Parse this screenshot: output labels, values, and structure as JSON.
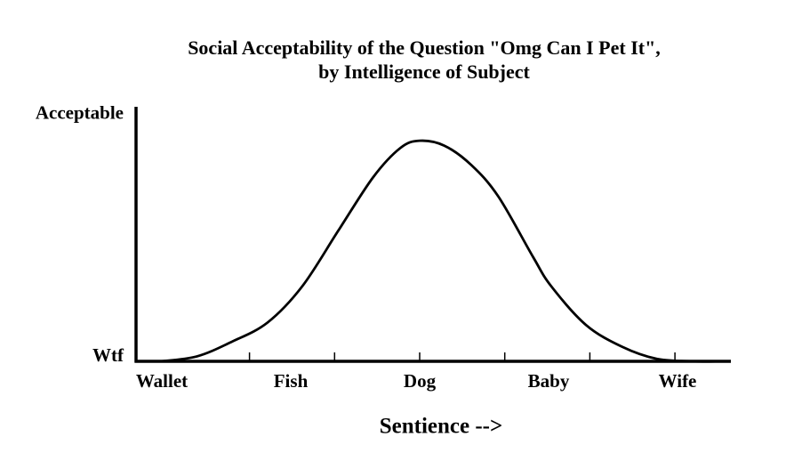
{
  "chart_data": {
    "type": "line",
    "title": [
      "Social Acceptability of the Question \"Omg Can I Pet It\",",
      "by Intelligence of Subject"
    ],
    "xlabel": "Sentience -->",
    "xlim": [
      -0.2,
      4.4
    ],
    "ylim": [
      0,
      1.05
    ],
    "xticks": [
      {
        "value": 0,
        "label": "Wallet"
      },
      {
        "value": 1,
        "label": "Fish"
      },
      {
        "value": 2,
        "label": "Dog"
      },
      {
        "value": 3,
        "label": "Baby"
      },
      {
        "value": 4,
        "label": "Wife"
      }
    ],
    "x_tick_marks": [
      0.68,
      1.34,
      2,
      2.66,
      3.32,
      3.98
    ],
    "yticks": [
      {
        "value": 1,
        "label": "Acceptable"
      },
      {
        "value": 0,
        "label": "Wtf"
      }
    ],
    "series": [
      {
        "color": "#000000",
        "x": [
          -0.01,
          0.27,
          0.54,
          0.82,
          1.09,
          1.37,
          1.64,
          1.85,
          2,
          2.19,
          2.4,
          2.61,
          2.88,
          3.02,
          3.29,
          3.57,
          3.84,
          4.12,
          4.33
        ],
        "values": [
          0,
          0.02,
          0.08,
          0.16,
          0.31,
          0.54,
          0.76,
          0.88,
          0.91,
          0.89,
          0.81,
          0.68,
          0.43,
          0.31,
          0.15,
          0.06,
          0.01,
          0,
          0
        ]
      }
    ]
  }
}
